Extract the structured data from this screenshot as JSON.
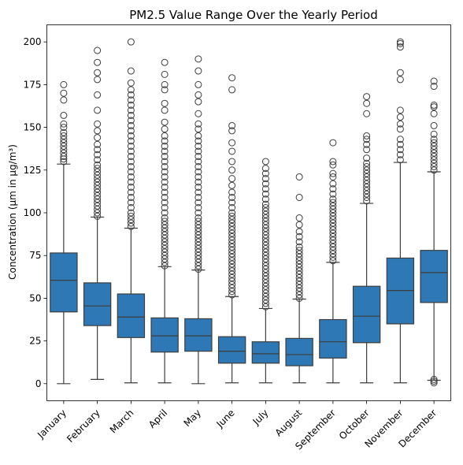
{
  "chart_data": {
    "type": "box",
    "title": "PM2.5 Value Range Over the Yearly Period",
    "xlabel": "",
    "ylabel": "Concentration (µm in µg/m³)",
    "ylim": [
      -10,
      210
    ],
    "yticks": [
      0,
      25,
      50,
      75,
      100,
      125,
      150,
      175,
      200
    ],
    "grid": false,
    "legend": "none",
    "box_color": "#2e79b5",
    "line_color": "#3d3d3d",
    "categories": [
      "January",
      "February",
      "March",
      "April",
      "May",
      "June",
      "July",
      "August",
      "September",
      "October",
      "November",
      "December"
    ],
    "boxes": [
      {
        "min": 0,
        "q1": 42,
        "median": 60.5,
        "q3": 76.5,
        "max": 128.5,
        "outliers": [
          130,
          131.5,
          133,
          135,
          137,
          139,
          141,
          143,
          145,
          147,
          150,
          152,
          157,
          166,
          170,
          175
        ]
      },
      {
        "min": 2.5,
        "q1": 34,
        "median": 45.5,
        "q3": 59,
        "max": 97.5,
        "outliers": [
          98,
          100,
          102,
          104,
          106,
          108,
          110,
          112,
          114,
          116,
          118,
          120,
          122,
          124,
          126,
          128,
          131,
          134,
          137,
          140,
          144,
          148,
          152,
          160,
          169,
          178,
          182,
          188,
          195
        ]
      },
      {
        "min": 0.5,
        "q1": 27,
        "median": 39,
        "q3": 52.5,
        "max": 91,
        "outliers": [
          92,
          94,
          96,
          98,
          100,
          103,
          106,
          109,
          112,
          115,
          118,
          121,
          124,
          127,
          130,
          133,
          136,
          139,
          142,
          145,
          148,
          151,
          154,
          157,
          160,
          163,
          166,
          169,
          172,
          176,
          183,
          200
        ]
      },
      {
        "min": 0.5,
        "q1": 18.5,
        "median": 28,
        "q3": 38.5,
        "max": 68.5,
        "outliers": [
          69,
          71,
          73,
          75,
          77,
          79,
          81,
          83,
          85,
          87,
          89,
          91,
          93,
          95,
          97,
          100,
          103,
          106,
          109,
          112,
          115,
          118,
          121,
          124,
          127,
          130,
          133,
          136,
          139,
          142,
          145,
          149,
          153,
          160,
          164,
          172,
          175,
          181,
          188
        ]
      },
      {
        "min": 0,
        "q1": 19,
        "median": 28,
        "q3": 38,
        "max": 66.5,
        "outliers": [
          67,
          69,
          71,
          73,
          75,
          77,
          79,
          81,
          83,
          85,
          87,
          89,
          91,
          93,
          95,
          97,
          100,
          103,
          106,
          109,
          112,
          115,
          118,
          121,
          124,
          127,
          130,
          133,
          136,
          139,
          142,
          145,
          149,
          152,
          158,
          165,
          169,
          175,
          183,
          190
        ]
      },
      {
        "min": 0.5,
        "q1": 12,
        "median": 19,
        "q3": 27.5,
        "max": 51,
        "outliers": [
          52,
          54,
          56,
          58,
          60,
          62,
          64,
          66,
          68,
          70,
          72,
          74,
          76,
          78,
          80,
          82,
          84,
          86,
          88,
          90,
          92,
          94,
          96,
          98,
          100,
          103,
          106,
          109,
          112,
          116,
          120,
          125,
          130,
          136,
          141,
          148,
          151,
          172,
          179
        ]
      },
      {
        "min": 0.5,
        "q1": 12,
        "median": 17.5,
        "q3": 24.5,
        "max": 44,
        "outliers": [
          45,
          47,
          49,
          51,
          53,
          55,
          57,
          59,
          61,
          63,
          65,
          67,
          69,
          71,
          73,
          75,
          77,
          79,
          81,
          83,
          85,
          87,
          89,
          91,
          93,
          95,
          97,
          99,
          101,
          103,
          105,
          108,
          111,
          114,
          117,
          120,
          123,
          126,
          130
        ]
      },
      {
        "min": 0.5,
        "q1": 10.5,
        "median": 17,
        "q3": 26.5,
        "max": 49.5,
        "outliers": [
          50,
          52,
          54,
          56,
          58,
          60,
          62,
          64,
          66,
          68,
          70,
          72,
          74,
          76,
          78,
          80,
          83,
          86,
          89,
          93,
          97,
          109,
          121
        ]
      },
      {
        "min": 0.5,
        "q1": 15,
        "median": 24.5,
        "q3": 37.5,
        "max": 71,
        "outliers": [
          72,
          74,
          76,
          78,
          80,
          82,
          84,
          86,
          88,
          90,
          92,
          94,
          96,
          98,
          100,
          102,
          104,
          106,
          108,
          111,
          114,
          117,
          121,
          123,
          128,
          130,
          141
        ]
      },
      {
        "min": 0.5,
        "q1": 24,
        "median": 39.5,
        "q3": 57,
        "max": 105.5,
        "outliers": [
          107,
          109,
          111,
          113,
          115,
          117,
          119,
          121,
          123,
          125,
          127,
          129,
          132,
          137,
          140,
          143,
          145,
          158,
          164,
          168
        ]
      },
      {
        "min": 0.5,
        "q1": 35,
        "median": 54.5,
        "q3": 73.5,
        "max": 129.5,
        "outliers": [
          131,
          134,
          137,
          140,
          143,
          149,
          152,
          156,
          160,
          178,
          182,
          197,
          199,
          200
        ]
      },
      {
        "min": 2,
        "q1": 47.5,
        "median": 65,
        "q3": 78,
        "max": 124,
        "outliers": [
          0.5,
          1.5,
          2.5,
          125,
          127,
          129,
          131,
          133,
          135,
          137,
          139,
          141,
          143,
          146,
          151,
          158,
          162,
          163,
          174,
          177
        ]
      }
    ]
  }
}
